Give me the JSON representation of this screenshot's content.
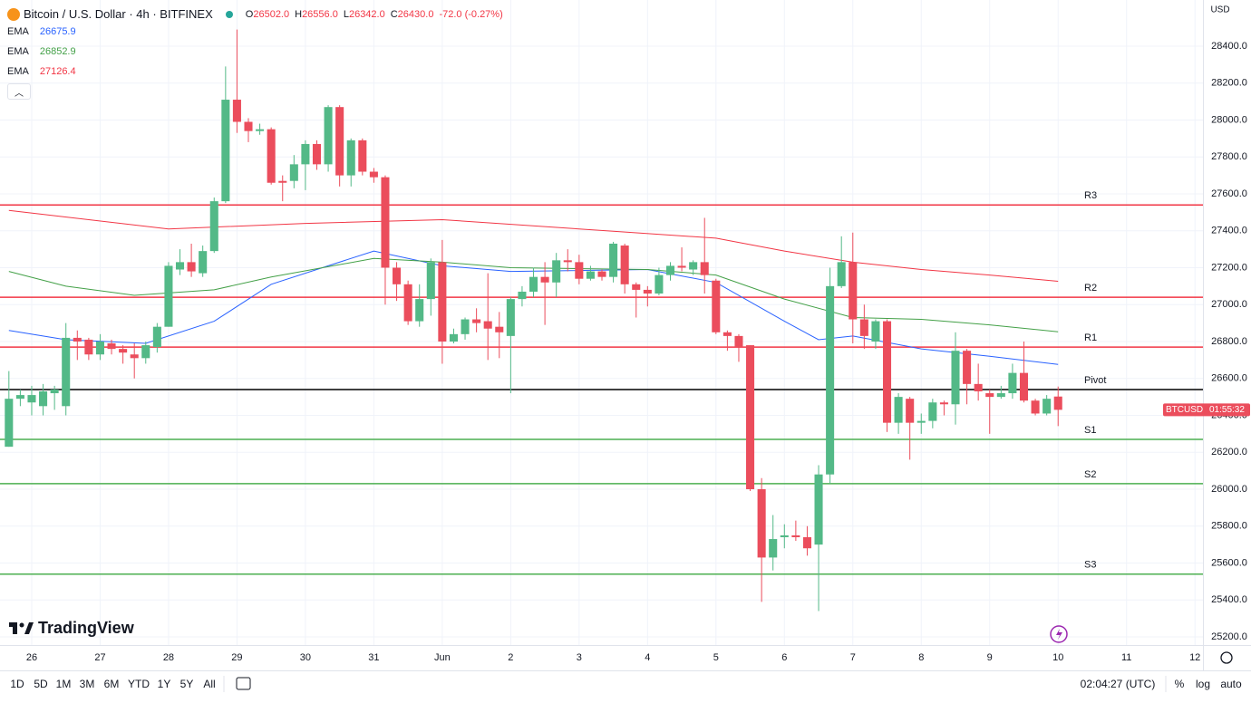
{
  "header": {
    "symbol": "Bitcoin / U.S. Dollar · 4h · BITFINEX",
    "ohlc": [
      {
        "label": "O",
        "value": "26502.0"
      },
      {
        "label": "H",
        "value": "26556.0"
      },
      {
        "label": "L",
        "value": "26342.0"
      },
      {
        "label": "C",
        "value": "26430.0"
      }
    ],
    "change": "-72.0 (-0.27%)"
  },
  "logo": "TradingView",
  "currency": "USD",
  "toolbar": {
    "ranges": [
      "1D",
      "5D",
      "1M",
      "3M",
      "6M",
      "YTD",
      "1Y",
      "5Y",
      "All"
    ],
    "clock": "02:04:27 (UTC)",
    "options": [
      "%",
      "log",
      "auto"
    ]
  },
  "chart_data": {
    "type": "candlestick",
    "grid": true,
    "up_color": "#53b987",
    "down_color": "#eb4d5c",
    "open": [
      26230,
      26490,
      26470,
      26450,
      26520,
      26450,
      26820,
      26810,
      26730,
      26790,
      26760,
      26730,
      26710,
      26770,
      26880,
      27190,
      27230,
      27170,
      27290,
      27560,
      28110,
      27990,
      27940,
      27950,
      27670,
      27670,
      27760,
      27870,
      27760,
      28070,
      27700,
      27890,
      27720,
      27690,
      27200,
      27110,
      26910,
      27030,
      27230,
      26800,
      26840,
      26920,
      26910,
      26880,
      26830,
      27030,
      27070,
      27150,
      27120,
      27240,
      27230,
      27140,
      27180,
      27150,
      27320,
      27110,
      27080,
      27060,
      27160,
      27210,
      27190,
      27230,
      27130,
      26850,
      26830,
      26780,
      26000,
      25630,
      25740,
      25750,
      25740,
      25700,
      26080,
      27100,
      27230,
      26920,
      26800,
      26910,
      26360,
      26490,
      26360,
      26370,
      26470,
      26460,
      26750,
      26570,
      26520,
      26500,
      26520,
      26630,
      26480,
      26410,
      26502
    ],
    "high": [
      26640,
      26540,
      26560,
      26570,
      26560,
      26900,
      26860,
      26820,
      26840,
      26810,
      26780,
      26790,
      26800,
      26900,
      27230,
      27300,
      27330,
      27320,
      27580,
      28290,
      28490,
      28010,
      27980,
      27960,
      27700,
      27810,
      27890,
      27890,
      28080,
      28080,
      27900,
      27900,
      27740,
      27700,
      27230,
      27130,
      27110,
      27250,
      27350,
      26870,
      26930,
      26980,
      27170,
      26960,
      27040,
      27100,
      27200,
      27230,
      27280,
      27300,
      27270,
      27210,
      27190,
      27340,
      27330,
      27120,
      27100,
      27200,
      27230,
      27310,
      27240,
      27470,
      27140,
      26860,
      26840,
      26780,
      26060,
      25860,
      25810,
      25830,
      25800,
      26130,
      27200,
      27370,
      27390,
      27000,
      26920,
      26920,
      26520,
      26500,
      26410,
      26490,
      26480,
      26850,
      26760,
      26680,
      26540,
      26560,
      26680,
      26800,
      26490,
      26510,
      26556
    ],
    "low": [
      26230,
      26450,
      26400,
      26400,
      26430,
      26400,
      26700,
      26700,
      26700,
      26730,
      26680,
      26600,
      26680,
      26740,
      26880,
      27160,
      27150,
      27150,
      27280,
      27550,
      27930,
      27880,
      27920,
      27650,
      27560,
      27630,
      27620,
      27730,
      27720,
      27640,
      27640,
      27700,
      27660,
      27000,
      27020,
      26890,
      26880,
      26940,
      26680,
      26790,
      26810,
      26850,
      26700,
      26710,
      26520,
      26990,
      27040,
      26890,
      27040,
      27180,
      27110,
      27130,
      27130,
      27120,
      27060,
      26930,
      26990,
      27050,
      27130,
      27180,
      27160,
      27060,
      26840,
      26750,
      26690,
      25990,
      25390,
      25560,
      25680,
      25720,
      25640,
      25340,
      26030,
      27090,
      26790,
      26760,
      26760,
      26310,
      26300,
      26160,
      26300,
      26330,
      26400,
      26350,
      26460,
      26480,
      26300,
      26490,
      26490,
      26470,
      26400,
      26400,
      26342
    ],
    "close": [
      26490,
      26510,
      26510,
      26530,
      26540,
      26820,
      26800,
      26730,
      26800,
      26760,
      26740,
      26710,
      26780,
      26880,
      27210,
      27230,
      27180,
      27290,
      27560,
      28110,
      27990,
      27940,
      27950,
      27660,
      27660,
      27760,
      27870,
      27760,
      28070,
      27700,
      27890,
      27720,
      27690,
      27200,
      27110,
      26910,
      27030,
      27230,
      26800,
      26840,
      26920,
      26900,
      26870,
      26850,
      27030,
      27070,
      27150,
      27120,
      27240,
      27230,
      27140,
      27180,
      27150,
      27330,
      27110,
      27080,
      27060,
      27160,
      27210,
      27200,
      27230,
      27160,
      26850,
      26830,
      26770,
      26000,
      25630,
      25730,
      25750,
      25740,
      25680,
      26080,
      27100,
      27230,
      26920,
      26830,
      26910,
      26360,
      26500,
      26360,
      26370,
      26470,
      26460,
      26750,
      26570,
      26530,
      26500,
      26520,
      26630,
      26480,
      26410,
      26490,
      26430
    ],
    "xlim": [
      -0.78,
      104.7
    ],
    "xticks": [
      {
        "value": 2,
        "label": "26"
      },
      {
        "value": 8,
        "label": "27"
      },
      {
        "value": 14,
        "label": "28"
      },
      {
        "value": 20,
        "label": "29"
      },
      {
        "value": 26,
        "label": "30"
      },
      {
        "value": 32,
        "label": "31"
      },
      {
        "value": 38,
        "label": "Jun"
      },
      {
        "value": 44,
        "label": "2"
      },
      {
        "value": 50,
        "label": "3"
      },
      {
        "value": 56,
        "label": "4"
      },
      {
        "value": 62,
        "label": "5"
      },
      {
        "value": 68,
        "label": "6"
      },
      {
        "value": 74,
        "label": "7"
      },
      {
        "value": 80,
        "label": "8"
      },
      {
        "value": 86,
        "label": "9"
      },
      {
        "value": 92,
        "label": "10"
      },
      {
        "value": 98,
        "label": "11"
      },
      {
        "value": 104,
        "label": "12"
      }
    ],
    "ylim": [
      25156,
      28650
    ],
    "yticks": [
      {
        "value": 25200,
        "label": "25200.0"
      },
      {
        "value": 25400,
        "label": "25400.0"
      },
      {
        "value": 25600,
        "label": "25600.0"
      },
      {
        "value": 25800,
        "label": "25800.0"
      },
      {
        "value": 26000,
        "label": "26000.0"
      },
      {
        "value": 26200,
        "label": "26200.0"
      },
      {
        "value": 26400,
        "label": "26400.0"
      },
      {
        "value": 26600,
        "label": "26600.0"
      },
      {
        "value": 26800,
        "label": "26800.0"
      },
      {
        "value": 27000,
        "label": "27000.0"
      },
      {
        "value": 27200,
        "label": "27200.0"
      },
      {
        "value": 27400,
        "label": "27400.0"
      },
      {
        "value": 27600,
        "label": "27600.0"
      },
      {
        "value": 27800,
        "label": "27800.0"
      },
      {
        "value": 28000,
        "label": "28000.0"
      },
      {
        "value": 28200,
        "label": "28200.0"
      },
      {
        "value": 28400,
        "label": "28400.0"
      }
    ],
    "series": [
      {
        "name": "EMA",
        "value_label": "26675.9",
        "color": "#2962ff",
        "x": [
          0,
          5,
          12,
          18,
          23,
          32,
          38,
          44,
          56,
          62,
          68,
          71,
          74,
          80,
          86,
          92
        ],
        "values": [
          26860,
          26810,
          26790,
          26910,
          27110,
          27290,
          27210,
          27180,
          27190,
          27120,
          26910,
          26810,
          26830,
          26760,
          26720,
          26675.9
        ]
      },
      {
        "name": "EMA",
        "value_label": "26852.9",
        "color": "#43a047",
        "x": [
          0,
          5,
          11,
          18,
          23,
          32,
          38,
          44,
          56,
          62,
          68,
          74,
          80,
          86,
          92
        ],
        "values": [
          27180,
          27100,
          27050,
          27080,
          27150,
          27250,
          27230,
          27200,
          27190,
          27160,
          27030,
          26930,
          26920,
          26890,
          26852.9
        ]
      },
      {
        "name": "EMA",
        "value_label": "27126.4",
        "color": "#f23645",
        "x": [
          0,
          14,
          26,
          38,
          50,
          62,
          68,
          74,
          80,
          86,
          92
        ],
        "values": [
          27510,
          27410,
          27440,
          27460,
          27410,
          27360,
          27290,
          27230,
          27190,
          27160,
          27126.4
        ]
      }
    ],
    "levels": [
      {
        "name": "R3",
        "value": 27540,
        "color": "#f23645"
      },
      {
        "name": "R2",
        "value": 27040,
        "color": "#f23645"
      },
      {
        "name": "R1",
        "value": 26770,
        "color": "#f23645"
      },
      {
        "name": "Pivot",
        "value": 26540,
        "color": "#000000"
      },
      {
        "name": "S1",
        "value": 26270,
        "color": "#4caf50"
      },
      {
        "name": "S2",
        "value": 26030,
        "color": "#4caf50"
      },
      {
        "name": "S3",
        "value": 25540,
        "color": "#4caf50"
      }
    ],
    "price_label": {
      "symbol": "BTCUSD",
      "countdown": "01:55:32"
    }
  }
}
